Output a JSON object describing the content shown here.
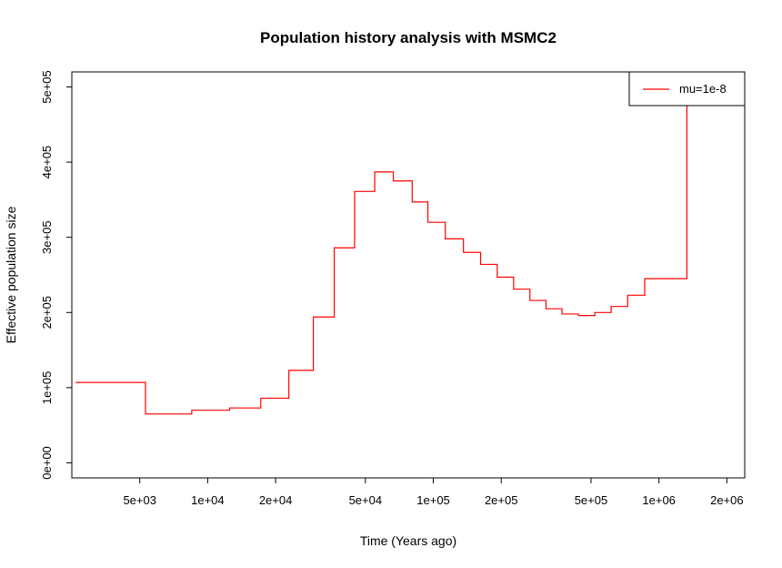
{
  "chart_data": {
    "type": "line",
    "step": true,
    "title": "Population history analysis with MSMC2",
    "xlabel": "Time (Years ago)",
    "ylabel": "Effective population size",
    "x_scale": "log",
    "xlim": [
      2500,
      2400000
    ],
    "ylim": [
      -20000,
      520000
    ],
    "x_ticks": [
      5000,
      10000,
      20000,
      50000,
      100000,
      200000,
      500000,
      1000000,
      2000000
    ],
    "x_tick_labels": [
      "5e+03",
      "1e+04",
      "2e+04",
      "5e+04",
      "1e+05",
      "2e+05",
      "5e+05",
      "1e+06",
      "2e+06"
    ],
    "y_ticks": [
      0,
      100000,
      200000,
      300000,
      400000,
      500000
    ],
    "y_tick_labels": [
      "0e+00",
      "1e+05",
      "2e+05",
      "3e+05",
      "4e+05",
      "5e+05"
    ],
    "grid": false,
    "legend_position": "top-right",
    "series": [
      {
        "name": "mu=1e-8",
        "color": "#ff0000",
        "x": [
          2600,
          5300,
          8500,
          12500,
          17200,
          22900,
          29400,
          36400,
          44800,
          55000,
          66500,
          80600,
          94600,
          113000,
          136000,
          162000,
          192000,
          227000,
          268000,
          316000,
          372000,
          440000,
          520000,
          614000,
          727000,
          865000,
          1330000
        ],
        "values": [
          107000,
          65000,
          70000,
          73000,
          86000,
          123000,
          194000,
          286000,
          361000,
          387000,
          375000,
          347000,
          320000,
          298000,
          280000,
          264000,
          247000,
          231000,
          216000,
          205000,
          198000,
          196000,
          200000,
          208000,
          223000,
          245000,
          307000
        ],
        "end_x": 1330000,
        "end_value": 520000
      }
    ]
  }
}
